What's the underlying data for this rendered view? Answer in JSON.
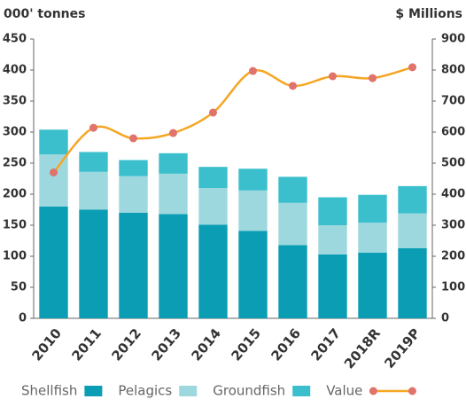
{
  "chart_data": {
    "type": "bar",
    "stacked": true,
    "y_label": "000' tonnes",
    "y2_label": "$ Millions",
    "categories": [
      "2010",
      "2011",
      "2012",
      "2013",
      "2014",
      "2015",
      "2016",
      "2017",
      "2018R",
      "2019P"
    ],
    "series": [
      {
        "name": "Shellfish",
        "color": "#0a9db4",
        "values": [
          180,
          175,
          170,
          168,
          151,
          141,
          118,
          103,
          106,
          113
        ]
      },
      {
        "name": "Pelagics",
        "color": "#9ed8df",
        "values": [
          84,
          61,
          59,
          65,
          59,
          65,
          68,
          47,
          48,
          56
        ]
      },
      {
        "name": "Groundfish",
        "color": "#3bbfcd",
        "values": [
          40,
          32,
          26,
          33,
          34,
          35,
          42,
          45,
          45,
          44
        ]
      },
      {
        "name": "Value",
        "type": "line",
        "axis": "y2",
        "color": "#f5a623",
        "marker_color": "#e0736b",
        "values": [
          470,
          614,
          580,
          597,
          663,
          797,
          749,
          780,
          774,
          809
        ]
      }
    ],
    "ylim": [
      0,
      450
    ],
    "yticks": [
      0,
      50,
      100,
      150,
      200,
      250,
      300,
      350,
      400,
      450
    ],
    "y2lim": [
      0,
      900
    ],
    "y2ticks": [
      0,
      100,
      200,
      300,
      400,
      500,
      600,
      700,
      800,
      900
    ],
    "legend": "bottom"
  }
}
